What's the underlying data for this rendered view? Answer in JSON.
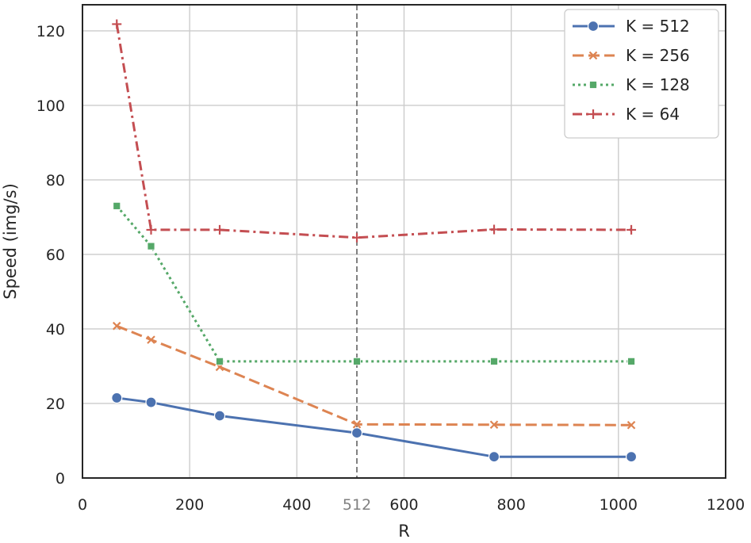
{
  "chart_data": {
    "type": "line",
    "xlabel": "R",
    "ylabel": "Speed (img/s)",
    "xlim": [
      0,
      1200
    ],
    "ylim": [
      0,
      127
    ],
    "xticks": [
      0,
      200,
      400,
      600,
      800,
      1000,
      1200
    ],
    "yticks": [
      0,
      20,
      40,
      60,
      80,
      100,
      120
    ],
    "grid": true,
    "legend_position": "top-right",
    "reference_line": {
      "x": 512,
      "label": "512",
      "color": "#808080",
      "style": "dashed"
    },
    "x": [
      64,
      128,
      256,
      512,
      768,
      1024
    ],
    "series": [
      {
        "name": "K = 512",
        "color": "#4c72b0",
        "dash": "solid",
        "marker": "circle",
        "values": [
          21.5,
          20.3,
          16.7,
          12.1,
          5.7,
          5.7
        ]
      },
      {
        "name": "K = 256",
        "color": "#dd8452",
        "dash": "dashed",
        "marker": "x",
        "values": [
          40.8,
          37.1,
          29.8,
          14.4,
          14.3,
          14.2
        ]
      },
      {
        "name": "K = 128",
        "color": "#55a868",
        "dash": "dotted",
        "marker": "square",
        "values": [
          73.0,
          62.2,
          31.3,
          31.3,
          31.3,
          31.3
        ]
      },
      {
        "name": "K = 64",
        "color": "#c44e52",
        "dash": "dashdot",
        "marker": "plus",
        "values": [
          121.8,
          66.6,
          66.6,
          64.5,
          66.7,
          66.6
        ]
      }
    ]
  }
}
